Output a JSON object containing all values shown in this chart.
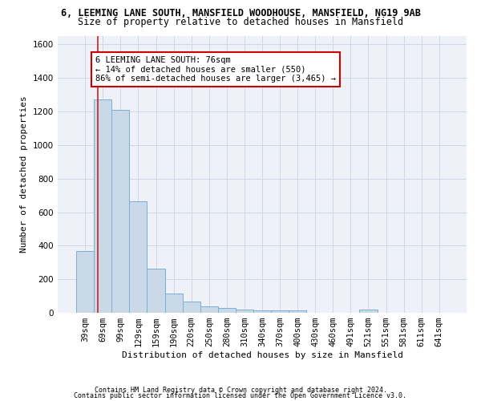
{
  "title": "6, LEEMING LANE SOUTH, MANSFIELD WOODHOUSE, MANSFIELD, NG19 9AB",
  "subtitle": "Size of property relative to detached houses in Mansfield",
  "xlabel": "Distribution of detached houses by size in Mansfield",
  "ylabel": "Number of detached properties",
  "categories": [
    "39sqm",
    "69sqm",
    "99sqm",
    "129sqm",
    "159sqm",
    "190sqm",
    "220sqm",
    "250sqm",
    "280sqm",
    "310sqm",
    "340sqm",
    "370sqm",
    "400sqm",
    "430sqm",
    "460sqm",
    "491sqm",
    "521sqm",
    "551sqm",
    "581sqm",
    "611sqm",
    "641sqm"
  ],
  "values": [
    370,
    1270,
    1210,
    665,
    265,
    115,
    65,
    37,
    27,
    20,
    16,
    16,
    15,
    0,
    0,
    0,
    20,
    0,
    0,
    0,
    0
  ],
  "bar_color": "#c9d9e8",
  "bar_edge_color": "#7bafd4",
  "grid_color": "#d0d8e8",
  "background_color": "#eef2f8",
  "annotation_text": "6 LEEMING LANE SOUTH: 76sqm\n← 14% of detached houses are smaller (550)\n86% of semi-detached houses are larger (3,465) →",
  "annotation_box_color": "#ffffff",
  "annotation_border_color": "#cc0000",
  "vline_color": "#cc2222",
  "ylim": [
    0,
    1650
  ],
  "yticks": [
    0,
    200,
    400,
    600,
    800,
    1000,
    1200,
    1400,
    1600
  ],
  "footer_line1": "Contains HM Land Registry data © Crown copyright and database right 2024.",
  "footer_line2": "Contains public sector information licensed under the Open Government Licence v3.0.",
  "title_fontsize": 8.5,
  "subtitle_fontsize": 8.5,
  "ylabel_fontsize": 8,
  "xlabel_fontsize": 8,
  "tick_fontsize": 7.5,
  "ann_fontsize": 7.5,
  "footer_fontsize": 6.0
}
